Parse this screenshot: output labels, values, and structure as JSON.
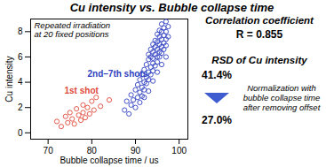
{
  "chart_data": {
    "type": "scatter",
    "title": "Cu intensity vs. Bubble collapse time",
    "x_label": "Bubble collapse time / us",
    "y_label": "Cu intensity",
    "xlim": [
      66,
      102
    ],
    "ylim": [
      -0.5,
      9
    ],
    "xticks": [
      70,
      80,
      90,
      100
    ],
    "yticks": [
      0,
      2,
      4,
      6,
      8
    ],
    "grid": false,
    "annotation": "Repeated irradiation\nat 20 fixed positions",
    "series": [
      {
        "name": "1st shot",
        "color": "#e04a3c",
        "marker": "circle",
        "x": [
          72,
          73,
          74,
          74.5,
          75,
          75.5,
          76,
          76.5,
          77,
          77.5,
          78,
          78,
          78.5,
          79,
          79.5,
          80,
          80.5,
          81,
          82,
          84
        ],
        "values": [
          0.9,
          0.5,
          1.3,
          0.8,
          1.6,
          1.1,
          0.7,
          1.9,
          1.4,
          1.0,
          2.2,
          1.6,
          1.2,
          2.0,
          1.5,
          2.5,
          1.8,
          2.8,
          2.1,
          2.6
        ]
      },
      {
        "name": "2nd–7th shots",
        "color": "#2f3fc0",
        "marker": "circle",
        "x": [
          87.5,
          88,
          88.5,
          89,
          89,
          89.5,
          90,
          90,
          90.5,
          90.5,
          91,
          91,
          91.5,
          91.5,
          91.5,
          92,
          92,
          92,
          92.5,
          92.5,
          92.5,
          93,
          93,
          93,
          93,
          93.5,
          93.5,
          93.5,
          93.5,
          94,
          94,
          94,
          94,
          94,
          94.5,
          94.5,
          94.5,
          94.5,
          95,
          95,
          95,
          95,
          95,
          95.5,
          95.5,
          95.5,
          95.5,
          95.5,
          96,
          96,
          96,
          96,
          96,
          96.5,
          96.5,
          96.5,
          96.5,
          97,
          97,
          97,
          97,
          97.5,
          97.5,
          91,
          92,
          93,
          94,
          95,
          96,
          97
        ],
        "values": [
          1.8,
          2.5,
          1.5,
          2.2,
          3.0,
          2.6,
          2.0,
          3.4,
          2.8,
          3.8,
          3.2,
          4.2,
          2.9,
          4.6,
          3.6,
          4.0,
          5.0,
          3.4,
          4.4,
          5.4,
          3.9,
          4.8,
          5.8,
          4.2,
          6.2,
          5.2,
          4.6,
          6.0,
          6.6,
          5.5,
          6.4,
          4.9,
          7.0,
          5.9,
          6.2,
          6.8,
          5.3,
          7.3,
          6.0,
          6.6,
          7.2,
          5.6,
          7.8,
          6.4,
          7.0,
          7.6,
          6.0,
          8.1,
          6.8,
          7.4,
          8.0,
          6.3,
          8.6,
          7.1,
          7.7,
          8.3,
          6.6,
          7.4,
          8.0,
          8.8,
          6.9,
          7.6,
          8.4,
          2.4,
          2.8,
          3.3,
          4.1,
          4.8,
          5.4,
          6.0
        ]
      }
    ],
    "panel": {
      "correlation_title": "Correlation coefficient",
      "correlation": "R = 0.855",
      "rsd_title": "RSD of Cu intensity",
      "rsd_before": "41.4%",
      "rsd_after": "27.0%",
      "note": "Normalization with bubble collapse time after removing offset"
    }
  }
}
